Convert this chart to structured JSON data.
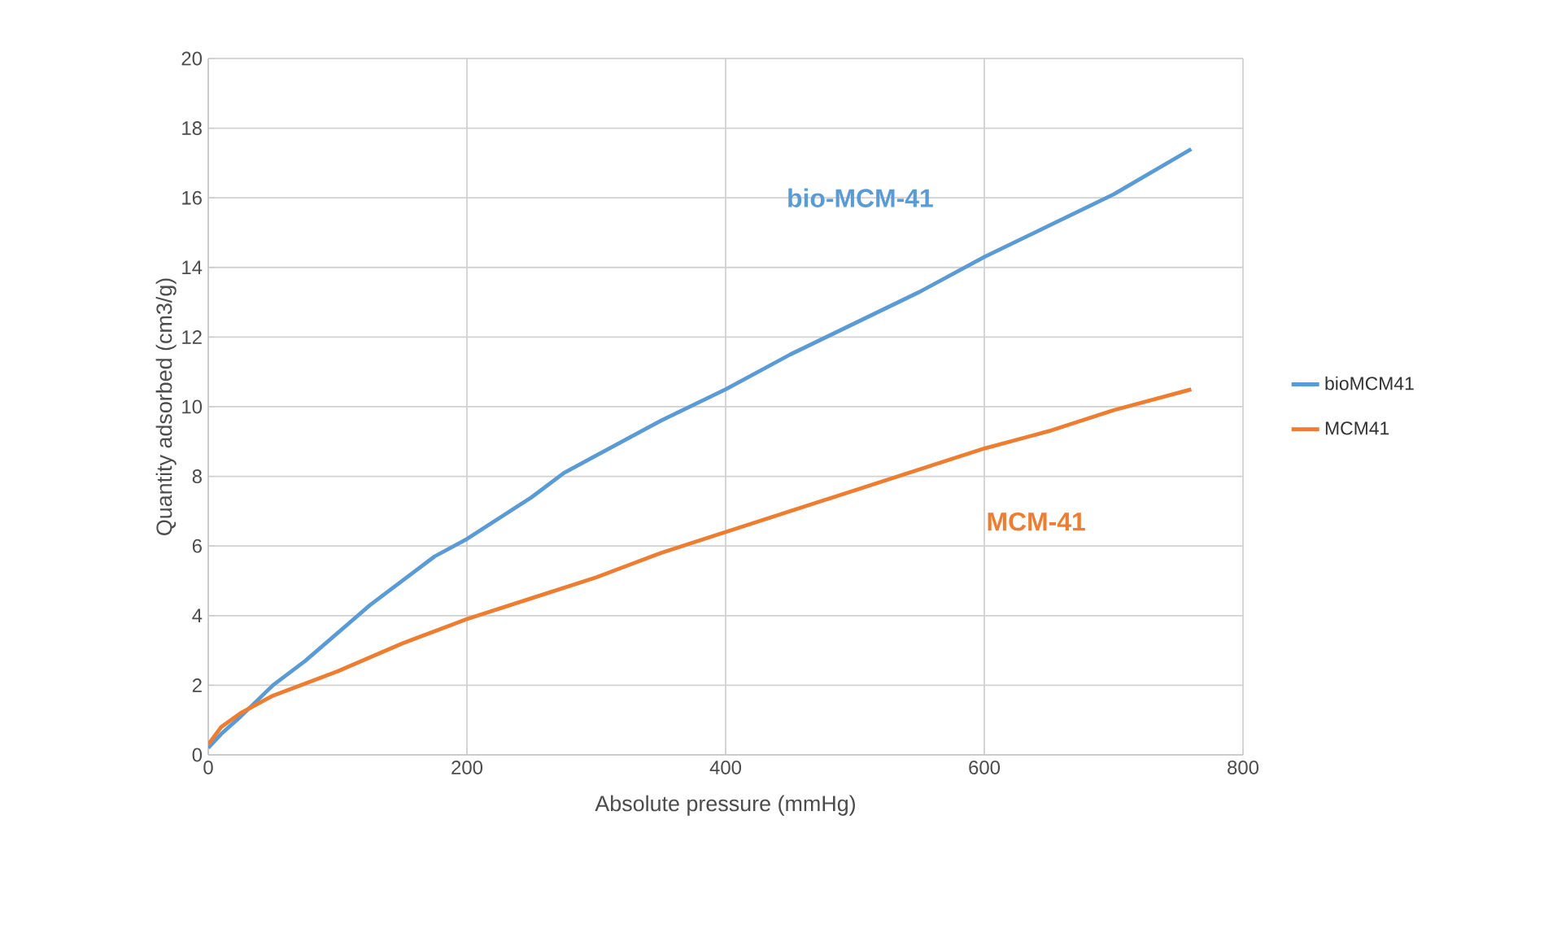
{
  "chart_data": {
    "type": "line",
    "xlabel": "Absolute pressure (mmHg)",
    "ylabel": "Quantity adsorbed (cm3/g)",
    "xlim": [
      0,
      800
    ],
    "xticks": [
      0,
      200,
      400,
      600,
      800
    ],
    "ylim": [
      0,
      20
    ],
    "yticks": [
      0,
      2,
      4,
      6,
      8,
      10,
      12,
      14,
      16,
      18,
      20
    ],
    "grid": true,
    "legend": "right",
    "marker": "none",
    "line_style": "solid",
    "series": [
      {
        "name": "bioMCM41",
        "color": "#5b9bd5",
        "x": [
          0,
          10,
          25,
          50,
          75,
          100,
          125,
          150,
          175,
          200,
          225,
          250,
          275,
          300,
          350,
          400,
          450,
          500,
          550,
          600,
          650,
          700,
          760
        ],
        "values": [
          0.2,
          0.6,
          1.1,
          2.0,
          2.7,
          3.5,
          4.3,
          5.0,
          5.7,
          6.2,
          6.8,
          7.4,
          8.1,
          8.6,
          9.6,
          10.5,
          11.5,
          12.4,
          13.3,
          14.3,
          15.2,
          16.1,
          17.4
        ]
      },
      {
        "name": "MCM41",
        "color": "#ed7d31",
        "x": [
          0,
          10,
          25,
          50,
          100,
          150,
          200,
          250,
          300,
          350,
          400,
          450,
          500,
          550,
          600,
          650,
          700,
          760
        ],
        "values": [
          0.3,
          0.8,
          1.2,
          1.7,
          2.4,
          3.2,
          3.9,
          4.5,
          5.1,
          5.8,
          6.4,
          7.0,
          7.6,
          8.2,
          8.8,
          9.3,
          9.9,
          10.5
        ]
      }
    ],
    "annotations": [
      "bio-MCM-41",
      "MCM-41"
    ]
  }
}
